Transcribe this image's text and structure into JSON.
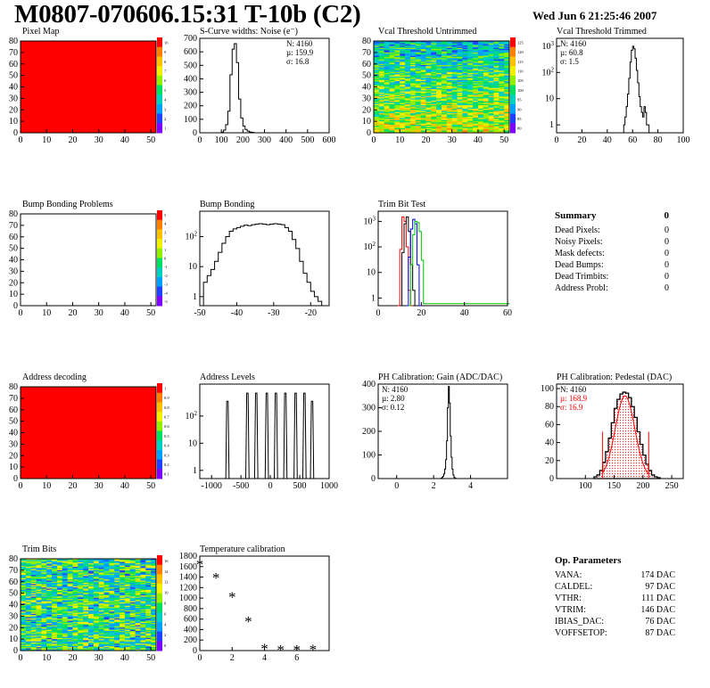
{
  "header": {
    "title": "M0807-070606.15:31 T-10b (C2)",
    "date": "Wed Jun  6 21:25:46 2007"
  },
  "summary": {
    "title": "Summary",
    "total": "0",
    "rows": [
      {
        "label": "Dead Pixels:",
        "value": "0"
      },
      {
        "label": "Noisy Pixels:",
        "value": "0"
      },
      {
        "label": "Mask defects:",
        "value": "0"
      },
      {
        "label": "Dead Bumps:",
        "value": "0"
      },
      {
        "label": "Dead Trimbits:",
        "value": "0"
      },
      {
        "label": "Address Probl:",
        "value": "0"
      }
    ]
  },
  "params": {
    "title": "Op. Parameters",
    "rows": [
      {
        "label": "VANA:",
        "value": "174 DAC"
      },
      {
        "label": "CALDEL:",
        "value": "97 DAC"
      },
      {
        "label": "VTHR:",
        "value": "111 DAC"
      },
      {
        "label": "VTRIM:",
        "value": "146 DAC"
      },
      {
        "label": "IBIAS_DAC:",
        "value": "76 DAC"
      },
      {
        "label": "VOFFSETOP:",
        "value": "87 DAC"
      }
    ]
  },
  "chart_data": [
    {
      "id": "pixelmap",
      "type": "heatmap",
      "title": "Pixel Map",
      "xlim": [
        0,
        52
      ],
      "ylim": [
        0,
        80
      ],
      "xticks": [
        0,
        10,
        20,
        30,
        40,
        50
      ],
      "yticks": [
        0,
        10,
        20,
        30,
        40,
        50,
        60,
        70,
        80
      ],
      "fill": "uniform-max",
      "fill_color": "#ff0000",
      "zmin": 0,
      "zmax": 10,
      "zticks": [
        "10",
        "9",
        "8",
        "7",
        "6",
        "5",
        "4",
        "3",
        "2",
        "1"
      ],
      "palette": [
        "#ff0000",
        "#ff8000",
        "#ffc000",
        "#f0f000",
        "#90f000",
        "#00e060",
        "#00d0c0",
        "#00a0ff",
        "#2040ff",
        "#8000ff"
      ]
    },
    {
      "id": "noise",
      "type": "bar",
      "title": "S-Curve widths: Noise (e⁻)",
      "xlim": [
        0,
        600
      ],
      "ylim": [
        0,
        700
      ],
      "xticks": [
        0,
        100,
        200,
        300,
        400,
        500,
        600
      ],
      "yticks": [
        0,
        100,
        200,
        300,
        400,
        500,
        600,
        700
      ],
      "stats": [
        "N: 4160",
        "µ: 159.9",
        "σ: 16.8"
      ],
      "bin_width": 10,
      "x": [
        100,
        110,
        120,
        130,
        140,
        150,
        160,
        170,
        180,
        190,
        200,
        210,
        220,
        230,
        240
      ],
      "values": [
        5,
        20,
        60,
        160,
        430,
        620,
        660,
        520,
        250,
        110,
        50,
        25,
        12,
        6,
        3
      ]
    },
    {
      "id": "vcal_untrimmed",
      "type": "heatmap",
      "title": "Vcal Threshold Untrimmed",
      "xlim": [
        0,
        52
      ],
      "ylim": [
        0,
        80
      ],
      "xticks": [
        0,
        10,
        20,
        30,
        40,
        50
      ],
      "yticks": [
        0,
        10,
        20,
        30,
        40,
        50,
        60,
        70,
        80
      ],
      "fill": "noise-gradient",
      "zticks": [
        "125",
        "120",
        "115",
        "110",
        "105",
        "100",
        "95",
        "90",
        "85",
        "80"
      ],
      "palette": [
        "#ff0000",
        "#ff8000",
        "#ffc000",
        "#f0f000",
        "#90f000",
        "#00e060",
        "#00d0c0",
        "#00a0ff",
        "#2040ff",
        "#8000ff"
      ]
    },
    {
      "id": "vcal_trimmed",
      "type": "bar",
      "title": "Vcal Threshold Trimmed",
      "log_y": true,
      "xlim": [
        0,
        100
      ],
      "ylim": [
        0.5,
        2000
      ],
      "xticks": [
        0,
        20,
        40,
        60,
        80,
        100
      ],
      "yticks": [
        1,
        10,
        100,
        1000
      ],
      "stats": [
        "N: 4160",
        "µ: 60.8",
        "σ: 1.5"
      ],
      "bin_width": 1,
      "x": [
        53,
        54,
        55,
        56,
        57,
        58,
        59,
        60,
        61,
        62,
        63,
        64,
        65,
        66,
        67,
        68,
        69,
        70,
        71,
        72
      ],
      "values": [
        1,
        2,
        5,
        15,
        60,
        250,
        700,
        1000,
        800,
        350,
        120,
        40,
        12,
        5,
        3,
        2,
        5,
        3,
        1,
        1
      ]
    },
    {
      "id": "bump_problems",
      "type": "heatmap",
      "title": "Bump Bonding Problems",
      "xlim": [
        0,
        52
      ],
      "ylim": [
        0,
        80
      ],
      "xticks": [
        0,
        10,
        20,
        30,
        40,
        50
      ],
      "yticks": [
        0,
        10,
        20,
        30,
        40,
        50,
        60,
        70,
        80
      ],
      "fill": "empty",
      "zticks": [
        "5",
        "4",
        "3",
        "2",
        "1",
        "0",
        "-1",
        "-2",
        "-3",
        "-4",
        "-5"
      ],
      "palette": [
        "#ff0000",
        "#ff8000",
        "#ffc000",
        "#f0f000",
        "#90f000",
        "#00e060",
        "#00d0c0",
        "#00a0ff",
        "#2040ff",
        "#8000ff"
      ]
    },
    {
      "id": "bump_bonding",
      "type": "bar",
      "title": "Bump Bonding",
      "log_y": true,
      "xlim": [
        -50,
        -15
      ],
      "ylim": [
        0.5,
        700
      ],
      "xticks": [
        -50,
        -40,
        -30,
        -20
      ],
      "yticks": [
        1,
        10,
        100
      ],
      "bin_width": 1,
      "x": [
        -49,
        -48,
        -47,
        -46,
        -45,
        -44,
        -43,
        -42,
        -41,
        -40,
        -39,
        -38,
        -37,
        -36,
        -35,
        -34,
        -33,
        -32,
        -31,
        -30,
        -29,
        -28,
        -27,
        -26,
        -25,
        -24,
        -23,
        -22,
        -21,
        -20,
        -19,
        -18
      ],
      "values": [
        3,
        5,
        8,
        15,
        30,
        60,
        100,
        150,
        180,
        200,
        220,
        240,
        230,
        250,
        260,
        270,
        260,
        250,
        260,
        270,
        260,
        250,
        200,
        150,
        80,
        40,
        15,
        6,
        3,
        1.5,
        1,
        0.7
      ]
    },
    {
      "id": "trimbit_test",
      "type": "line",
      "title": "Trim Bit Test",
      "log_y": true,
      "xlim": [
        0,
        60
      ],
      "ylim": [
        0.5,
        2500
      ],
      "xticks": [
        0,
        20,
        40,
        60
      ],
      "yticks": [
        1,
        10,
        100,
        1000
      ],
      "series": [
        {
          "color": "#ff0000",
          "x": [
            9,
            10,
            11,
            12,
            13,
            14,
            15
          ],
          "values": [
            0.5,
            80,
            1500,
            1000,
            100,
            2,
            0.5
          ]
        },
        {
          "color": "#000000",
          "x": [
            10,
            11,
            12,
            13,
            14,
            15,
            16,
            17
          ],
          "values": [
            0.5,
            60,
            800,
            1500,
            400,
            20,
            2,
            0.5
          ]
        },
        {
          "color": "#0000ff",
          "x": [
            13,
            14,
            15,
            16,
            17,
            18,
            19
          ],
          "values": [
            0.5,
            40,
            500,
            1200,
            800,
            20,
            0.5
          ]
        },
        {
          "color": "#00c000",
          "x": [
            14,
            15,
            16,
            17,
            18,
            19,
            20,
            21,
            60
          ],
          "values": [
            0.5,
            20,
            300,
            1000,
            900,
            400,
            30,
            0.6,
            0.6
          ]
        }
      ]
    },
    {
      "id": "address_decoding",
      "type": "heatmap",
      "title": "Address decoding",
      "xlim": [
        0,
        52
      ],
      "ylim": [
        0,
        80
      ],
      "xticks": [
        0,
        10,
        20,
        30,
        40,
        50
      ],
      "yticks": [
        0,
        10,
        20,
        30,
        40,
        50,
        60,
        70,
        80
      ],
      "fill": "uniform-max",
      "fill_color": "#ff0000",
      "zticks": [
        "1",
        "0.9",
        "0.8",
        "0.7",
        "0.6",
        "0.5",
        "0.4",
        "0.3",
        "0.2",
        "0.1"
      ],
      "palette": [
        "#ff0000",
        "#ff8000",
        "#ffc000",
        "#f0f000",
        "#90f000",
        "#00e060",
        "#00d0c0",
        "#00a0ff",
        "#2040ff",
        "#8000ff"
      ]
    },
    {
      "id": "address_levels",
      "type": "bar",
      "title": "Address Levels",
      "log_y": true,
      "xlim": [
        -1200,
        1000
      ],
      "ylim": [
        0.5,
        1500
      ],
      "xticks": [
        -1000,
        -500,
        0,
        500,
        1000
      ],
      "yticks": [
        1,
        10,
        100
      ],
      "peaks": [
        -730,
        -390,
        -240,
        -60,
        95,
        255,
        430,
        580,
        710
      ],
      "peak_heights": [
        350,
        700,
        700,
        700,
        700,
        700,
        700,
        700,
        350
      ]
    },
    {
      "id": "ph_gain",
      "type": "bar",
      "title": "PH Calibration: Gain (ADC/DAC)",
      "xlim": [
        -1,
        6
      ],
      "ylim": [
        0,
        400
      ],
      "xticks": [
        0,
        2,
        4
      ],
      "yticks": [
        0,
        100,
        200,
        300,
        400
      ],
      "stats": [
        "N: 4160",
        "µ: 2.80",
        "σ: 0.12"
      ],
      "bin_width": 0.05,
      "x": [
        2.4,
        2.45,
        2.5,
        2.55,
        2.6,
        2.65,
        2.7,
        2.75,
        2.8,
        2.85,
        2.9,
        2.95,
        3.0,
        3.05,
        3.1,
        3.15
      ],
      "values": [
        2,
        5,
        10,
        20,
        40,
        80,
        160,
        300,
        390,
        320,
        180,
        90,
        40,
        15,
        5,
        2
      ]
    },
    {
      "id": "ph_pedestal",
      "type": "bar",
      "title": "PH Calibration: Pedestal (DAC)",
      "xlim": [
        50,
        270
      ],
      "ylim": [
        0,
        105
      ],
      "xticks": [
        100,
        150,
        200,
        250
      ],
      "yticks": [
        0,
        20,
        40,
        60,
        80,
        100
      ],
      "stats": [
        "N: 4160",
        "µ: 168.9",
        "σ: 16.9"
      ],
      "stats_colors": [
        "#000000",
        "#ff0000",
        "#ff0000"
      ],
      "fit": {
        "mean": 168.9,
        "sigma": 16.9,
        "amplitude": 92,
        "range": [
          130,
          210
        ],
        "color": "#ff0000"
      },
      "bin_width": 5,
      "x": [
        115,
        120,
        125,
        130,
        135,
        140,
        145,
        150,
        155,
        160,
        165,
        170,
        175,
        180,
        185,
        190,
        195,
        200,
        205,
        210,
        215,
        220,
        225
      ],
      "values": [
        2,
        4,
        9,
        18,
        30,
        45,
        62,
        78,
        88,
        94,
        96,
        95,
        90,
        80,
        68,
        52,
        38,
        26,
        16,
        9,
        4,
        2,
        1
      ]
    },
    {
      "id": "trim_bits",
      "type": "heatmap",
      "title": "Trim Bits",
      "xlim": [
        0,
        52
      ],
      "ylim": [
        0,
        80
      ],
      "xticks": [
        0,
        10,
        20,
        30,
        40,
        50
      ],
      "yticks": [
        0,
        10,
        20,
        30,
        40,
        50,
        60,
        70,
        80
      ],
      "fill": "noise-mid",
      "zticks": [
        "16",
        "14",
        "12",
        "10",
        "8",
        "6",
        "4",
        "2",
        "0"
      ],
      "palette": [
        "#ff0000",
        "#ff8000",
        "#ffc000",
        "#f0f000",
        "#90f000",
        "#00e060",
        "#00d0c0",
        "#00a0ff",
        "#2040ff",
        "#8000ff"
      ]
    },
    {
      "id": "temperature",
      "type": "scatter",
      "title": "Temperature calibration",
      "xlim": [
        0,
        8
      ],
      "ylim": [
        0,
        1800
      ],
      "xticks": [
        0,
        2,
        4,
        6
      ],
      "yticks": [
        0,
        200,
        400,
        600,
        800,
        1000,
        1200,
        1400,
        1600,
        1800
      ],
      "x": [
        0,
        1,
        2,
        3,
        4,
        5,
        6,
        7
      ],
      "values": [
        1650,
        1390,
        1030,
        560,
        40,
        20,
        20,
        25
      ]
    }
  ]
}
